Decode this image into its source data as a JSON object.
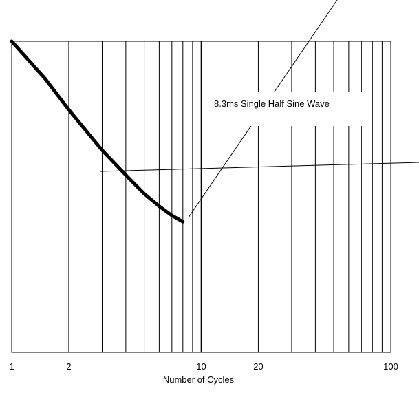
{
  "chart_data": {
    "type": "line",
    "title": "",
    "xlabel": "Number of Cycles",
    "ylabel": "",
    "x_scale": "log",
    "xlim": [
      1,
      100
    ],
    "ylim": [
      0,
      1
    ],
    "x_ticks": [
      1,
      2,
      10,
      20,
      100
    ],
    "x_tick_labels": [
      "1",
      "2",
      "10",
      "20",
      "100"
    ],
    "grid": {
      "vertical": true,
      "horizontal": false,
      "minor_lines": [
        3,
        4,
        5,
        6,
        7,
        8,
        9,
        30,
        40,
        50,
        60,
        70,
        80,
        90
      ]
    },
    "series": [
      {
        "x": [
          1,
          1.5,
          2,
          3,
          4,
          5,
          6,
          7,
          8
        ],
        "y": [
          1.0,
          0.88,
          0.78,
          0.65,
          0.57,
          0.51,
          0.47,
          0.44,
          0.42
        ]
      }
    ],
    "annotation": {
      "text": "8.3ms Single Half Sine Wave"
    },
    "colors": {
      "curve": "#000000",
      "grid": "#000000",
      "background": "#ffffff"
    }
  }
}
